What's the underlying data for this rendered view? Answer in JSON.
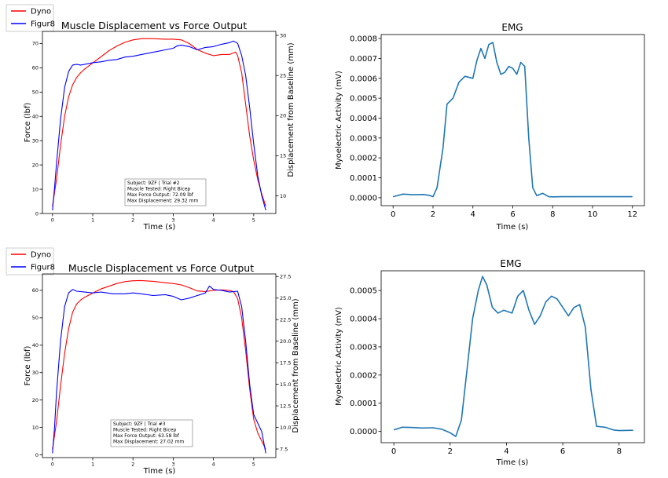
{
  "chart_data": [
    {
      "type": "line",
      "title": "Muscle Displacement vs Force Output",
      "xlabel": "Time (s)",
      "ylabel": "Force (lbf)",
      "y2label": "Displacement from Baseline (mm)",
      "xlim": [
        -0.25,
        5.55
      ],
      "ylim": [
        0,
        75
      ],
      "y2lim": [
        7.8,
        30.5
      ],
      "xticks": [
        0,
        1,
        2,
        3,
        4,
        5
      ],
      "yticks": [
        0,
        10,
        20,
        30,
        40,
        50,
        60,
        70
      ],
      "y2ticks": [
        10,
        15,
        20,
        25,
        30
      ],
      "grid": false,
      "legend_position": "outside-top-left",
      "annotation": [
        "Subject: 9ZF | Trial #2",
        "Muscle Tested: Right Bicep",
        "Max Force Output: 72.09 lbf",
        "Max Displacement: 29.32 mm"
      ],
      "series": [
        {
          "name": "Dyno",
          "color": "#ff0000",
          "axis": "left",
          "x": [
            0,
            0.1,
            0.2,
            0.3,
            0.4,
            0.5,
            0.6,
            0.7,
            0.8,
            1.0,
            1.2,
            1.4,
            1.6,
            1.8,
            2.0,
            2.2,
            2.5,
            2.8,
            3.0,
            3.2,
            3.4,
            3.6,
            3.8,
            4.0,
            4.2,
            4.4,
            4.55,
            4.6,
            4.7,
            4.8,
            4.9,
            5.0,
            5.1,
            5.2,
            5.3
          ],
          "values": [
            3,
            14,
            28,
            40,
            48,
            53,
            56,
            58,
            59.5,
            62,
            64.5,
            67,
            69,
            70.5,
            71.5,
            72,
            72,
            71.8,
            71.8,
            71.5,
            70,
            67.5,
            66,
            65,
            65.5,
            65.5,
            66.5,
            65,
            58,
            45,
            32,
            22,
            14,
            8,
            3
          ]
        },
        {
          "name": "Figur8",
          "color": "#0000ff",
          "axis": "right",
          "x": [
            0,
            0.05,
            0.1,
            0.2,
            0.3,
            0.4,
            0.5,
            0.6,
            0.7,
            0.8,
            1.0,
            1.2,
            1.4,
            1.6,
            1.8,
            2.0,
            2.2,
            2.4,
            2.6,
            2.8,
            3.0,
            3.1,
            3.2,
            3.4,
            3.6,
            3.8,
            4.0,
            4.2,
            4.4,
            4.5,
            4.6,
            4.7,
            4.8,
            4.9,
            5.0,
            5.1,
            5.2,
            5.3
          ],
          "values": [
            8.2,
            11,
            14,
            19.5,
            23.5,
            25.5,
            26.3,
            26.4,
            26.3,
            26.4,
            26.6,
            26.7,
            26.9,
            27.0,
            27.3,
            27.4,
            27.6,
            27.8,
            28.0,
            28.2,
            28.4,
            28.7,
            28.8,
            28.6,
            28.2,
            28.5,
            28.6,
            28.9,
            29.1,
            29.3,
            29.0,
            27.5,
            25.0,
            21.0,
            16.5,
            12.5,
            10.0,
            8.2
          ]
        }
      ]
    },
    {
      "type": "line",
      "title": "EMG",
      "xlabel": "Time (s)",
      "ylabel": "Myoelectric Activity (mV)",
      "xlim": [
        -0.6,
        12.6
      ],
      "ylim": [
        -4e-05,
        0.00082
      ],
      "xticks": [
        0,
        2,
        4,
        6,
        8,
        10,
        12
      ],
      "yticks": [
        0.0,
        0.0001,
        0.0002,
        0.0003,
        0.0004,
        0.0005,
        0.0006,
        0.0007,
        0.0008
      ],
      "ytick_labels": [
        "0.0000",
        "0.0001",
        "0.0002",
        "0.0003",
        "0.0004",
        "0.0005",
        "0.0006",
        "0.0007",
        "0.0008"
      ],
      "grid": false,
      "series": [
        {
          "color": "#1f77b4",
          "x": [
            0,
            0.5,
            1,
            1.5,
            1.8,
            2.0,
            2.2,
            2.5,
            2.7,
            3.0,
            3.3,
            3.6,
            4.0,
            4.2,
            4.4,
            4.6,
            4.8,
            5.0,
            5.2,
            5.4,
            5.6,
            5.8,
            6.0,
            6.2,
            6.4,
            6.6,
            6.8,
            7.0,
            7.2,
            7.5,
            7.8,
            8.0,
            8.5,
            9,
            10,
            11,
            12
          ],
          "values": [
            5e-06,
            1.8e-05,
            1.5e-05,
            1.6e-05,
            1.2e-05,
            5e-06,
            5e-05,
            0.00025,
            0.00047,
            0.0005,
            0.00058,
            0.00061,
            0.0006,
            0.00069,
            0.00075,
            0.0007,
            0.00077,
            0.00078,
            0.00068,
            0.00062,
            0.00063,
            0.00066,
            0.00065,
            0.00062,
            0.00068,
            0.00066,
            0.0003,
            5e-05,
            1e-05,
            2.2e-05,
            5e-06,
            4e-06,
            5e-06,
            5e-06,
            5e-06,
            5e-06,
            5e-06
          ]
        }
      ]
    },
    {
      "type": "line",
      "title": "Muscle Displacement vs Force Output",
      "xlabel": "Time (s)",
      "ylabel": "Force (lbf)",
      "y2label": "Displacement from Baseline (mm)",
      "xlim": [
        -0.25,
        5.55
      ],
      "ylim": [
        -1,
        66
      ],
      "y2lim": [
        6.5,
        27.8
      ],
      "xticks": [
        0,
        1,
        2,
        3,
        4,
        5
      ],
      "yticks": [
        0,
        10,
        20,
        30,
        40,
        50,
        60
      ],
      "y2ticks": [
        7.5,
        10.0,
        12.5,
        15.0,
        17.5,
        20.0,
        22.5,
        25.0,
        27.5
      ],
      "y2tick_labels": [
        "7.5",
        "10.0",
        "12.5",
        "15.0",
        "17.5",
        "20.0",
        "22.5",
        "25.0",
        "27.5"
      ],
      "grid": false,
      "legend_position": "outside-top-left",
      "annotation": [
        "Subject: 9ZF | Trial #3",
        "Muscle Tested: Right Bicep",
        "Max Force Output: 63.58 lbf",
        "Max Displacement: 27.02 mm"
      ],
      "series": [
        {
          "name": "Dyno",
          "color": "#ff0000",
          "axis": "left",
          "x": [
            0,
            0.1,
            0.2,
            0.3,
            0.4,
            0.5,
            0.6,
            0.7,
            0.8,
            1.0,
            1.2,
            1.4,
            1.6,
            1.8,
            2.0,
            2.2,
            2.5,
            2.8,
            3.0,
            3.2,
            3.4,
            3.6,
            3.8,
            4.0,
            4.2,
            4.4,
            4.5,
            4.6,
            4.7,
            4.8,
            4.9,
            5.0,
            5.1,
            5.2,
            5.3
          ],
          "values": [
            2,
            12,
            25,
            37,
            46,
            52,
            55,
            56.5,
            57.5,
            59,
            60.5,
            61.5,
            62.5,
            63.2,
            63.5,
            63.6,
            63.3,
            62.8,
            62.5,
            62,
            61,
            59.8,
            59.6,
            60,
            60.2,
            60,
            59.5,
            57,
            50,
            38,
            24,
            13,
            8,
            5,
            2
          ]
        },
        {
          "name": "Figur8",
          "color": "#0000ff",
          "axis": "right",
          "x": [
            0,
            0.05,
            0.1,
            0.2,
            0.3,
            0.4,
            0.5,
            0.6,
            0.8,
            1.0,
            1.2,
            1.5,
            1.8,
            2.0,
            2.2,
            2.5,
            2.8,
            3.0,
            3.2,
            3.4,
            3.6,
            3.8,
            3.9,
            4.0,
            4.2,
            4.4,
            4.6,
            4.7,
            4.8,
            4.9,
            5.0,
            5.1,
            5.2,
            5.3
          ],
          "values": [
            7.0,
            10,
            14,
            20,
            24,
            25.6,
            26.0,
            25.8,
            25.7,
            25.6,
            25.7,
            25.5,
            25.5,
            25.6,
            25.5,
            25.3,
            25.4,
            25.2,
            24.8,
            25.0,
            25.3,
            25.6,
            26.4,
            26.0,
            25.9,
            25.7,
            25.8,
            24.0,
            20.0,
            15.0,
            11.5,
            10.5,
            9.5,
            7.0
          ]
        }
      ]
    },
    {
      "type": "line",
      "title": "EMG",
      "xlabel": "Time (s)",
      "ylabel": "Myoelectric Activity (mV)",
      "xlim": [
        -0.45,
        8.9
      ],
      "ylim": [
        -4e-05,
        0.00057
      ],
      "xticks": [
        0,
        2,
        4,
        6,
        8
      ],
      "yticks": [
        0.0,
        0.0001,
        0.0002,
        0.0003,
        0.0004,
        0.0005
      ],
      "ytick_labels": [
        "0.0000",
        "0.0001",
        "0.0002",
        "0.0003",
        "0.0004",
        "0.0005"
      ],
      "grid": false,
      "series": [
        {
          "color": "#1f77b4",
          "x": [
            0,
            0.3,
            0.6,
            1.0,
            1.4,
            1.7,
            2.0,
            2.2,
            2.4,
            2.6,
            2.8,
            3.0,
            3.15,
            3.3,
            3.5,
            3.7,
            3.9,
            4.2,
            4.4,
            4.6,
            4.8,
            5.0,
            5.2,
            5.4,
            5.6,
            5.8,
            6.0,
            6.2,
            6.4,
            6.6,
            6.8,
            7.0,
            7.2,
            7.5,
            7.8,
            8.0,
            8.5
          ],
          "values": [
            5e-06,
            1.5e-05,
            1.4e-05,
            1.2e-05,
            1.3e-05,
            8e-06,
            -5e-06,
            -1.8e-05,
            4e-05,
            0.00022,
            0.0004,
            0.0005,
            0.00055,
            0.00052,
            0.00044,
            0.00042,
            0.00043,
            0.00042,
            0.00048,
            0.0005,
            0.00043,
            0.00038,
            0.00041,
            0.00046,
            0.00048,
            0.00047,
            0.00044,
            0.00041,
            0.00044,
            0.00045,
            0.00037,
            0.00015,
            1.8e-05,
            1.5e-05,
            5e-06,
            3e-06,
            4e-06
          ]
        }
      ]
    }
  ]
}
